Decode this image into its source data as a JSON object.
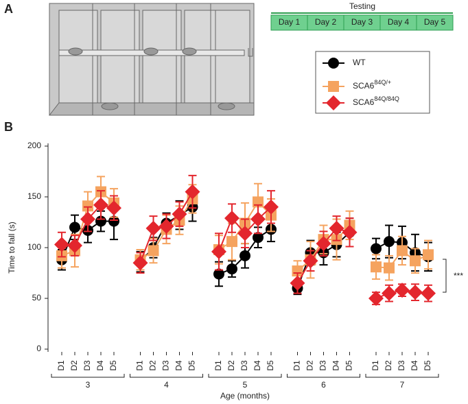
{
  "panel_a": {
    "label": "A",
    "timeline_title": "Testing",
    "days": [
      "Day 1",
      "Day 2",
      "Day 3",
      "Day 4",
      "Day 5"
    ]
  },
  "chart_data": {
    "type": "errorbar-line",
    "panel_label": "B",
    "y_label": "Time to fall (s)",
    "x_label": "Age (months)",
    "groups": [
      "3",
      "4",
      "5",
      "6",
      "7"
    ],
    "categories": [
      "D1",
      "D2",
      "D3",
      "D4",
      "D5",
      "D1",
      "D2",
      "D3",
      "D4",
      "D5",
      "D1",
      "D2",
      "D3",
      "D4",
      "D5",
      "D1",
      "D2",
      "D3",
      "D4",
      "D5",
      "D1",
      "D2",
      "D3",
      "D4",
      "D5"
    ],
    "ylim": [
      0,
      200
    ],
    "yticks": [
      0,
      50,
      100,
      150,
      200
    ],
    "annotation": "***",
    "series": [
      {
        "name": "WT",
        "color": "#000000",
        "marker": "circle",
        "values": [
          88,
          120,
          117,
          126,
          126,
          86,
          100,
          124,
          132,
          140,
          74,
          79,
          92,
          110,
          118,
          60,
          95,
          95,
          103,
          115,
          99,
          106,
          105,
          95,
          91
        ],
        "errors": [
          10,
          12,
          12,
          10,
          18,
          10,
          10,
          10,
          14,
          14,
          12,
          8,
          12,
          10,
          12,
          6,
          12,
          12,
          12,
          14,
          10,
          16,
          16,
          18,
          14
        ]
      },
      {
        "name": "SCA6",
        "name_sup": "84Q/+",
        "color": "#f5a35f",
        "marker": "square",
        "values": [
          92,
          97,
          141,
          155,
          144,
          88,
          97,
          118,
          127,
          148,
          98,
          106,
          124,
          145,
          132,
          77,
          88,
          108,
          108,
          122,
          81,
          80,
          97,
          87,
          93
        ],
        "errors": [
          12,
          16,
          14,
          15,
          14,
          10,
          12,
          14,
          14,
          14,
          14,
          18,
          20,
          18,
          16,
          10,
          18,
          14,
          20,
          14,
          12,
          12,
          14,
          12,
          14
        ]
      },
      {
        "name": "SCA6",
        "name_sup": "84Q/84Q",
        "color": "#e3262d",
        "marker": "diamond",
        "values": [
          103,
          102,
          128,
          142,
          139,
          85,
          119,
          121,
          133,
          155,
          96,
          129,
          114,
          128,
          140,
          65,
          87,
          104,
          119,
          115,
          50,
          55,
          58,
          56,
          55
        ],
        "errors": [
          12,
          10,
          12,
          14,
          12,
          10,
          12,
          12,
          12,
          16,
          18,
          14,
          14,
          14,
          16,
          10,
          10,
          12,
          12,
          14,
          6,
          8,
          6,
          8,
          8
        ]
      }
    ]
  }
}
